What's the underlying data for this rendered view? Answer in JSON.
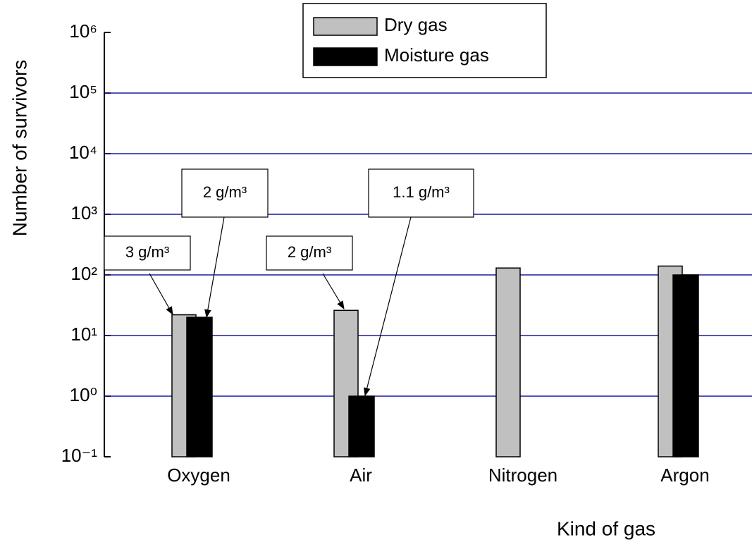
{
  "chart_data": {
    "type": "bar",
    "x_label": "Kind of gas",
    "y_label": "Number of survivors",
    "categories": [
      "Oxygen",
      "Air",
      "Nitrogen",
      "Argon"
    ],
    "series": [
      {
        "name": "Dry gas",
        "color": "#c0c0c0",
        "values": [
          22,
          26,
          130,
          140
        ]
      },
      {
        "name": "Moisture gas",
        "color": "#000000",
        "values": [
          20,
          1,
          null,
          100
        ]
      }
    ],
    "y_scale": "log",
    "ylim": [
      0.1,
      1000000
    ],
    "yticks": [
      {
        "value": 0.1,
        "label": "10⁻¹"
      },
      {
        "value": 1,
        "label": "10⁰"
      },
      {
        "value": 10,
        "label": "10¹"
      },
      {
        "value": 100,
        "label": "10²"
      },
      {
        "value": 1000,
        "label": "10³"
      },
      {
        "value": 10000,
        "label": "10⁴"
      },
      {
        "value": 100000,
        "label": "10⁵"
      },
      {
        "value": 1000000,
        "label": "10⁶"
      }
    ],
    "grid": true,
    "grid_color": "#1a1aa0",
    "legend": "top",
    "annotations": [
      "3 g/m³",
      "2 g/m³",
      "2 g/m³",
      "1.1 g/m³"
    ]
  }
}
